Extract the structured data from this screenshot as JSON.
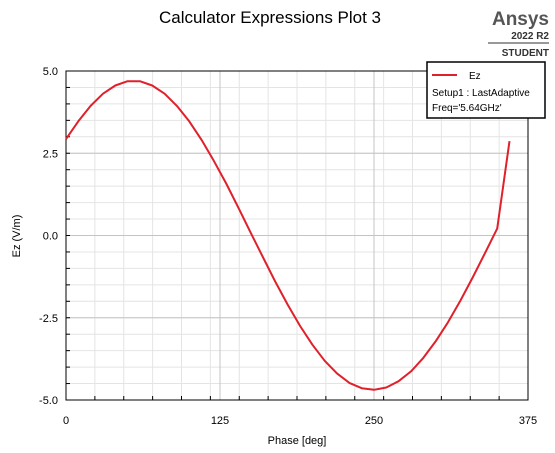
{
  "brand": {
    "name": "Ansys",
    "version": "2022 R2",
    "edition": "STUDENT"
  },
  "chart_data": {
    "type": "line",
    "title": "Calculator Expressions Plot 3",
    "xlabel": "Phase [deg]",
    "ylabel": "Ez (V/m)",
    "xlim": [
      0,
      375
    ],
    "ylim": [
      -5.0,
      5.0
    ],
    "xticks": [
      0,
      125,
      250,
      375
    ],
    "xtick_labels": [
      "0",
      "125",
      "250",
      "375"
    ],
    "yticks": [
      5.0,
      2.5,
      0.0,
      -2.5,
      -5.0
    ],
    "ytick_labels": [
      "5.0",
      "2.5",
      "0.0",
      "-2.5",
      "-5.0"
    ],
    "grid": true,
    "legend_position": "top-right",
    "series": [
      {
        "name": "Ez",
        "color": "#e0202a",
        "x": [
          0,
          10,
          20,
          30,
          40,
          50,
          60,
          70,
          80,
          90,
          100,
          110,
          120,
          130,
          140,
          150,
          160,
          170,
          180,
          190,
          200,
          210,
          220,
          230,
          240,
          250,
          260,
          270,
          280,
          290,
          300,
          310,
          320,
          330,
          340,
          350,
          360
        ],
        "y": [
          2.93,
          3.47,
          3.94,
          4.31,
          4.56,
          4.69,
          4.69,
          4.56,
          4.31,
          3.94,
          3.47,
          2.91,
          2.27,
          1.58,
          0.84,
          0.08,
          -0.67,
          -1.41,
          -2.11,
          -2.75,
          -3.32,
          -3.81,
          -4.19,
          -4.48,
          -4.64,
          -4.69,
          -4.62,
          -4.43,
          -4.13,
          -3.72,
          -3.22,
          -2.64,
          -1.99,
          -1.28,
          -0.54,
          0.21,
          2.87
        ]
      }
    ],
    "legend_lines": [
      "Setup1 : LastAdaptive",
      "Freq='5.64GHz'"
    ]
  }
}
